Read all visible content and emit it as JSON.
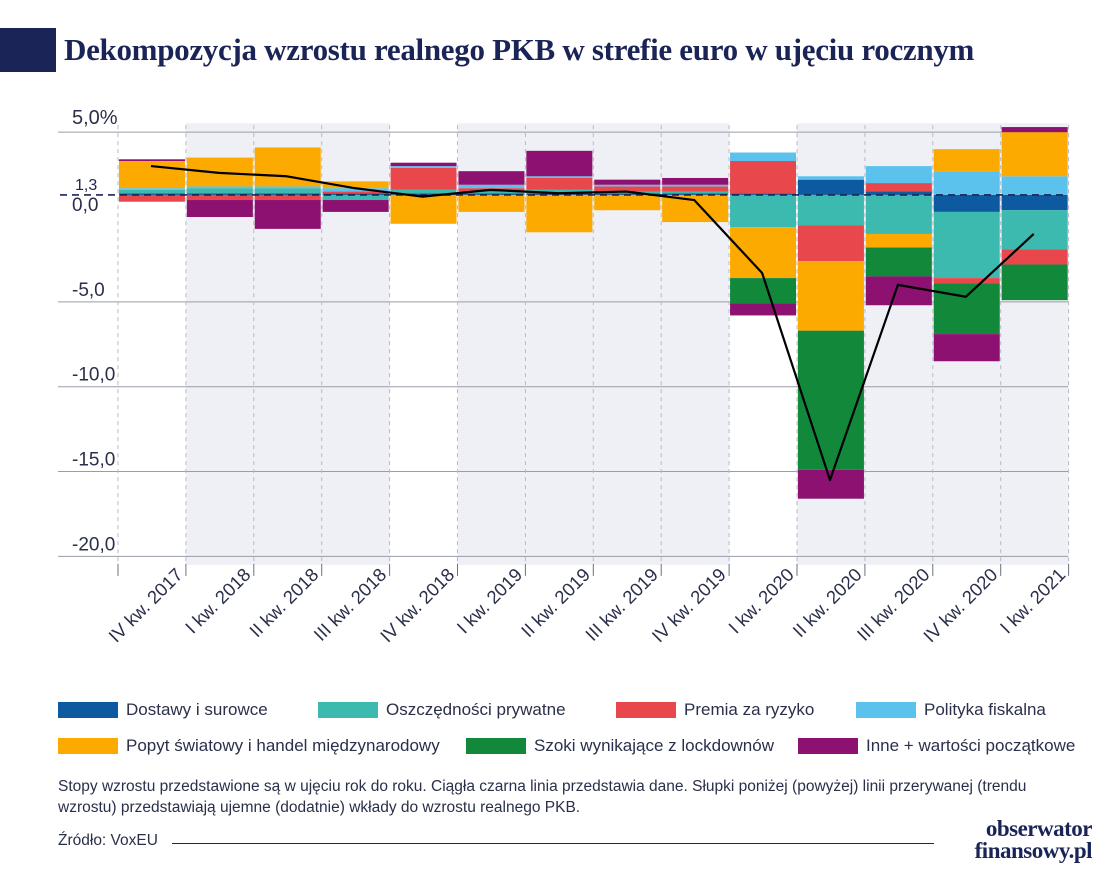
{
  "title": "Dekompozycja wzrostu realnego PKB w strefie euro w ujęciu rocznym",
  "colors": {
    "title": "#1b2456",
    "supply": "#0d5aa0",
    "savings": "#3dbab0",
    "risk": "#e8474c",
    "fiscal": "#5bc2ee",
    "world": "#fdaa00",
    "lockdown": "#11883a",
    "other": "#8c1170",
    "line": "#000000",
    "grid": "#9a9ca8",
    "shade": "#eef0f5"
  },
  "chart_data": {
    "type": "bar",
    "stacked": true,
    "title": "Dekompozycja wzrostu realnego PKB w strefie euro w ujęciu rocznym",
    "categories": [
      "IV kw. 2017",
      "I kw. 2018",
      "II kw. 2018",
      "III kw. 2018",
      "IV kw. 2018",
      "I kw. 2019",
      "II kw. 2019",
      "III kw. 2019",
      "IV kw. 2019",
      "I kw. 2020",
      "II kw. 2020",
      "III kw. 2020",
      "IV kw. 2020",
      "I kw. 2021"
    ],
    "baseline": 1.3,
    "baseline_label": "1,3",
    "ylim": [
      -20.5,
      6.0
    ],
    "y_ticks": [
      5,
      0,
      -5,
      -10,
      -15,
      -20
    ],
    "y_tick_labels": [
      "5,0%",
      "0,0",
      "-5,0",
      "-10,0",
      "-15,0",
      "-20,0"
    ],
    "series": [
      {
        "name": "Dostawy i surowce",
        "key": "supply",
        "values": [
          0.1,
          0.1,
          0.1,
          0.1,
          0.1,
          0.1,
          0.1,
          0.1,
          0.1,
          0.1,
          0.9,
          0.2,
          -1.0,
          -0.9
        ]
      },
      {
        "name": "Oszczędności prywatne",
        "key": "savings",
        "values": [
          0.2,
          0.3,
          0.3,
          -0.3,
          0.2,
          0.1,
          0.2,
          0.1,
          0.1,
          -1.9,
          -1.8,
          -2.3,
          -3.9,
          -2.3
        ]
      },
      {
        "name": "Premia za ryzyko",
        "key": "risk",
        "values": [
          -0.4,
          -0.3,
          -0.3,
          0.1,
          1.3,
          0.2,
          0.7,
          0.3,
          0.3,
          1.9,
          -2.1,
          0.5,
          -0.3,
          -0.9
        ]
      },
      {
        "name": "Polityka fiskalna",
        "key": "fiscal",
        "values": [
          0.1,
          0.1,
          0.1,
          0.2,
          0.1,
          0.2,
          0.1,
          0.1,
          0.1,
          0.5,
          0.2,
          1.0,
          1.4,
          1.1
        ]
      },
      {
        "name": "Popyt światowy i handel międzynarodowy",
        "key": "world",
        "values": [
          1.6,
          1.7,
          2.3,
          0.4,
          -1.7,
          -1.0,
          -2.2,
          -0.9,
          -1.6,
          -3.0,
          -4.1,
          -0.8,
          1.3,
          2.6
        ]
      },
      {
        "name": "Szoki wynikające z lockdownów",
        "key": "lockdown",
        "values": [
          0.0,
          0.0,
          0.0,
          0.0,
          0.0,
          0.0,
          0.0,
          0.0,
          0.0,
          -1.5,
          -8.2,
          -1.7,
          -3.0,
          -2.1
        ]
      },
      {
        "name": "Inne + wartości początkowe",
        "key": "other",
        "values": [
          0.1,
          -1.0,
          -1.7,
          -0.7,
          0.2,
          0.8,
          1.5,
          0.3,
          0.4,
          -0.7,
          -1.7,
          -1.7,
          -1.6,
          0.3
        ]
      }
    ],
    "line": {
      "name": "Dane",
      "values": [
        3.0,
        2.6,
        2.4,
        1.7,
        1.2,
        1.6,
        1.4,
        1.5,
        1.0,
        -3.3,
        -15.5,
        -4.0,
        -4.7,
        -1.0
      ]
    },
    "shaded_ranges": [
      [
        1,
        3
      ],
      [
        5,
        8
      ],
      [
        10,
        13
      ]
    ]
  },
  "legend": {
    "row1": [
      {
        "key": "supply",
        "label": "Dostawy i surowce"
      },
      {
        "key": "savings",
        "label": "Oszczędności prywatne"
      },
      {
        "key": "risk",
        "label": "Premia za ryzyko"
      },
      {
        "key": "fiscal",
        "label": "Polityka fiskalna"
      }
    ],
    "row2": [
      {
        "key": "world",
        "label": "Popyt światowy i handel międzynarodowy"
      },
      {
        "key": "lockdown",
        "label": "Szoki wynikające z lockdownów"
      },
      {
        "key": "other",
        "label": "Inne + wartości początkowe"
      }
    ]
  },
  "note": "Stopy wzrostu przedstawione są w ujęciu rok do roku. Ciągła czarna linia przedstawia dane. Słupki poniżej (powyżej) linii przerywanej (trendu wzrostu) przedstawiają ujemne (dodatnie) wkłady do wzrostu realnego PKB.",
  "source": "Źródło: VoxEU",
  "logo": {
    "line1": "obserwator",
    "line2": "finansowy.pl"
  }
}
